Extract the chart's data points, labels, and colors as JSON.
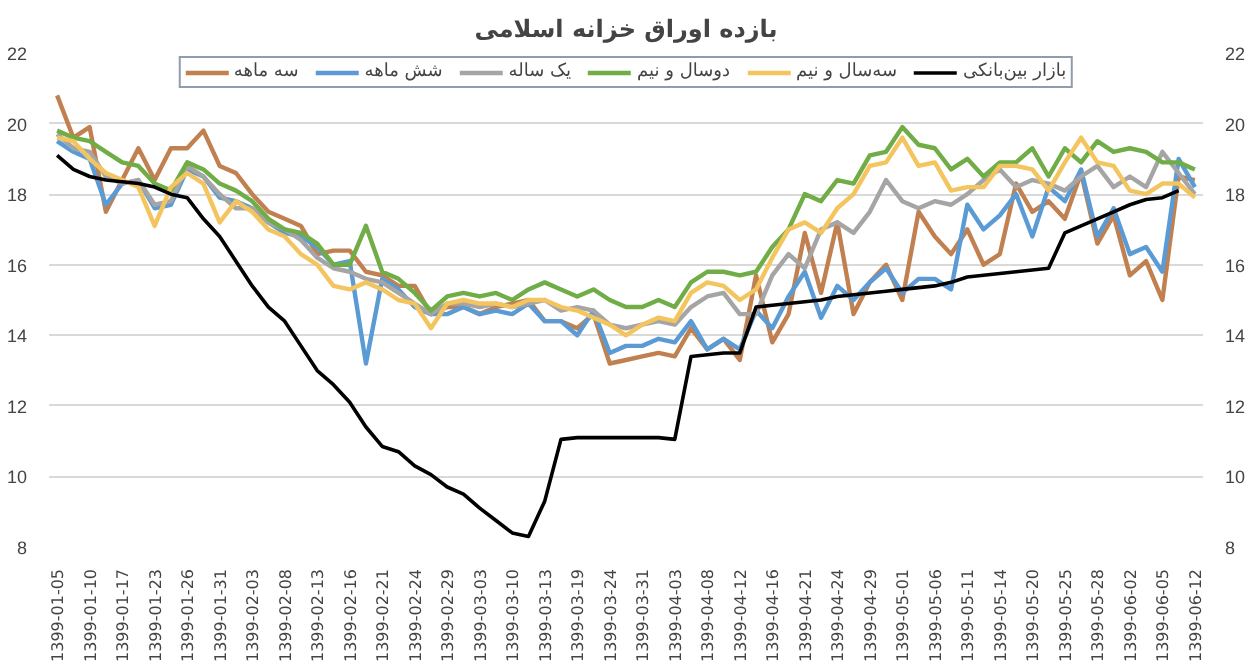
{
  "chart_data": {
    "type": "line",
    "title": "بازده اوراق خزانه اسلامی",
    "categories": [
      "1399-01-05",
      null,
      "1399-01-10",
      null,
      "1399-01-17",
      null,
      "1399-01-23",
      null,
      "1399-01-26",
      null,
      "1399-01-31",
      null,
      "1399-02-03",
      null,
      "1399-02-08",
      null,
      "1399-02-13",
      null,
      "1399-02-16",
      null,
      "1399-02-21",
      null,
      "1399-02-24",
      null,
      "1399-02-29",
      null,
      "1399-03-03",
      null,
      "1399-03-10",
      null,
      "1399-03-13",
      null,
      "1399-03-19",
      null,
      "1399-03-24",
      null,
      "1399-03-31",
      null,
      "1399-04-03",
      null,
      "1399-04-08",
      null,
      "1399-04-12",
      null,
      "1399-04-16",
      null,
      "1399-04-21",
      null,
      "1399-04-24",
      null,
      "1399-04-29",
      null,
      "1399-05-01",
      null,
      "1399-05-06",
      null,
      "1399-05-11",
      null,
      "1399-05-14",
      null,
      "1399-05-20",
      null,
      "1399-05-25",
      null,
      "1399-05-28",
      null,
      "1399-06-02",
      null,
      "1399-06-05",
      null,
      "1399-06-12"
    ],
    "series": [
      {
        "name": "سه ماهه",
        "color": "#c0804f",
        "values": [
          20.8,
          19.6,
          19.9,
          17.5,
          18.4,
          19.3,
          18.4,
          19.3,
          19.3,
          19.8,
          18.8,
          18.6,
          18.0,
          17.5,
          17.3,
          17.1,
          16.3,
          16.4,
          16.4,
          15.8,
          15.7,
          15.4,
          15.4,
          14.6,
          14.8,
          14.8,
          14.6,
          14.8,
          14.9,
          15.0,
          14.4,
          14.4,
          14.2,
          14.6,
          13.2,
          13.3,
          13.4,
          13.5,
          13.4,
          14.2,
          13.6,
          13.9,
          13.3,
          15.7,
          13.8,
          14.6,
          16.9,
          15.2,
          17.2,
          14.6,
          15.5,
          16.0,
          15.0,
          17.5,
          16.8,
          16.3,
          17.0,
          16.0,
          16.3,
          18.3,
          17.5,
          17.8,
          17.3,
          18.6,
          16.6,
          17.4,
          15.7,
          16.1,
          15.0,
          18.5,
          18.4
        ]
      },
      {
        "name": "شش ماهه",
        "color": "#5b9bd5",
        "values": [
          19.5,
          19.2,
          19.0,
          17.7,
          18.3,
          18.4,
          17.6,
          17.7,
          18.7,
          18.5,
          17.9,
          17.8,
          17.6,
          17.2,
          16.9,
          16.8,
          16.5,
          16.0,
          16.1,
          13.2,
          15.6,
          15.3,
          14.8,
          14.6,
          14.6,
          14.8,
          14.6,
          14.7,
          14.6,
          14.9,
          14.4,
          14.4,
          14.0,
          14.7,
          13.5,
          13.7,
          13.7,
          13.9,
          13.8,
          14.4,
          13.6,
          13.9,
          13.6,
          14.7,
          14.2,
          15.1,
          15.8,
          14.5,
          15.4,
          15.0,
          15.5,
          15.9,
          15.2,
          15.6,
          15.6,
          15.3,
          17.7,
          17.0,
          17.4,
          18.0,
          16.8,
          18.2,
          17.8,
          18.7,
          16.8,
          17.6,
          16.3,
          16.5,
          15.8,
          19.0,
          18.2
        ]
      },
      {
        "name": "یک ساله",
        "color": "#a5a5a5",
        "values": [
          19.7,
          19.3,
          19.2,
          18.5,
          18.3,
          18.4,
          17.7,
          17.8,
          18.8,
          18.5,
          18.0,
          17.6,
          17.6,
          17.2,
          17.0,
          16.7,
          16.2,
          15.9,
          15.8,
          15.6,
          15.5,
          15.2,
          14.9,
          14.6,
          14.9,
          14.9,
          14.8,
          14.9,
          14.8,
          14.9,
          15.0,
          14.7,
          14.8,
          14.7,
          14.3,
          14.2,
          14.3,
          14.4,
          14.3,
          14.8,
          15.1,
          15.2,
          14.6,
          14.6,
          15.7,
          16.3,
          15.9,
          17.0,
          17.2,
          16.9,
          17.5,
          18.4,
          17.8,
          17.6,
          17.8,
          17.7,
          18.0,
          18.4,
          18.7,
          18.2,
          18.4,
          18.3,
          18.1,
          18.5,
          18.8,
          18.2,
          18.5,
          18.2,
          19.2,
          18.6,
          18.0
        ]
      },
      {
        "name": "دوسال و نیم",
        "color": "#70ad47",
        "values": [
          19.8,
          19.6,
          19.5,
          19.2,
          18.9,
          18.8,
          18.3,
          18.1,
          18.9,
          18.7,
          18.3,
          18.1,
          17.8,
          17.3,
          17.0,
          16.9,
          16.6,
          16.0,
          16.0,
          17.1,
          15.8,
          15.6,
          15.2,
          14.7,
          15.1,
          15.2,
          15.1,
          15.2,
          15.0,
          15.3,
          15.5,
          15.3,
          15.1,
          15.3,
          15.0,
          14.8,
          14.8,
          15.0,
          14.8,
          15.5,
          15.8,
          15.8,
          15.7,
          15.8,
          16.5,
          17.0,
          18.0,
          17.8,
          18.4,
          18.3,
          19.1,
          19.2,
          19.9,
          19.4,
          19.3,
          18.7,
          19.0,
          18.5,
          18.9,
          18.9,
          19.3,
          18.5,
          19.3,
          18.9,
          19.5,
          19.2,
          19.3,
          19.2,
          18.9,
          18.9,
          18.7
        ]
      },
      {
        "name": "سه‌سال و نیم",
        "color": "#f4c55e",
        "values": [
          19.6,
          19.5,
          19.0,
          18.6,
          18.4,
          18.2,
          17.1,
          18.2,
          18.6,
          18.3,
          17.2,
          17.8,
          17.5,
          17.0,
          16.8,
          16.3,
          16.0,
          15.4,
          15.3,
          15.5,
          15.3,
          15.0,
          14.9,
          14.2,
          14.9,
          15.0,
          14.9,
          14.9,
          14.8,
          15.0,
          15.0,
          14.8,
          14.7,
          14.5,
          14.3,
          14.0,
          14.3,
          14.5,
          14.4,
          15.2,
          15.5,
          15.4,
          15.0,
          15.3,
          16.2,
          17.0,
          17.2,
          16.9,
          17.6,
          18.0,
          18.8,
          18.9,
          19.6,
          18.8,
          18.9,
          18.1,
          18.2,
          18.2,
          18.8,
          18.8,
          18.7,
          18.1,
          18.9,
          19.6,
          18.9,
          18.8,
          18.1,
          18.0,
          18.3,
          18.3,
          17.9
        ]
      },
      {
        "name": "بازار بین‌بانکی",
        "color": "#000000",
        "values": [
          19.1,
          18.7,
          18.5,
          18.4,
          18.35,
          18.3,
          18.2,
          18.0,
          17.9,
          17.3,
          16.8,
          16.1,
          15.4,
          14.8,
          14.4,
          13.7,
          13.0,
          12.6,
          12.1,
          11.4,
          10.85,
          10.7,
          10.3,
          10.05,
          9.7,
          9.5,
          9.1,
          8.75,
          8.4,
          8.3,
          9.3,
          11.05,
          11.1,
          11.1,
          11.1,
          11.1,
          11.1,
          11.1,
          11.05,
          13.4,
          13.45,
          13.5,
          13.5,
          14.8,
          14.85,
          14.9,
          14.95,
          15.0,
          15.1,
          15.15,
          15.2,
          15.25,
          15.3,
          15.35,
          15.4,
          15.5,
          15.65,
          15.7,
          15.75,
          15.8,
          15.85,
          15.9,
          16.9,
          17.1,
          17.3,
          17.5,
          17.7,
          17.85,
          17.9,
          18.1,
          null
        ]
      }
    ],
    "ylim": [
      8,
      22
    ],
    "yticks": [
      8,
      10,
      12,
      14,
      16,
      18,
      20,
      22
    ],
    "y2lim": [
      8,
      22
    ],
    "y2ticks": [
      8,
      10,
      12,
      14,
      16,
      18,
      20,
      22
    ],
    "grid": "y",
    "legend": "top"
  }
}
